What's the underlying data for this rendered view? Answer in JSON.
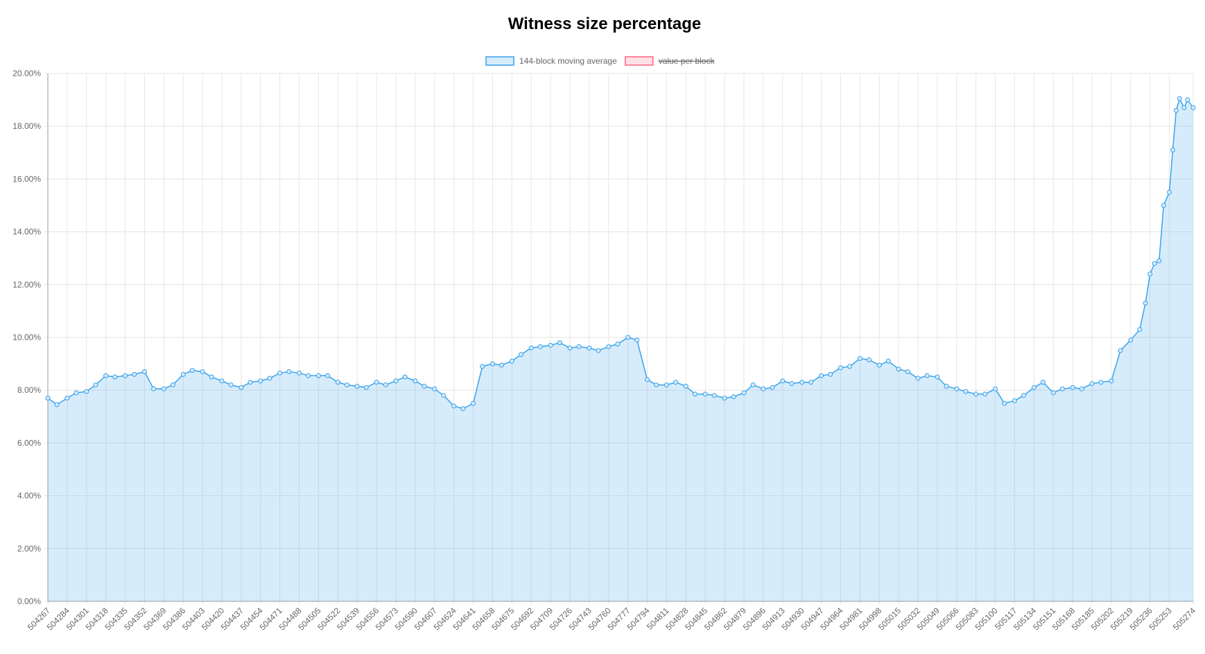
{
  "chart_data": {
    "type": "area",
    "title": "Witness size percentage",
    "x": [
      504267,
      504275,
      504284,
      504292,
      504301,
      504309,
      504318,
      504326,
      504335,
      504343,
      504352,
      504360,
      504369,
      504377,
      504386,
      504394,
      504403,
      504411,
      504420,
      504428,
      504437,
      504445,
      504454,
      504462,
      504471,
      504479,
      504488,
      504496,
      504505,
      504513,
      504522,
      504530,
      504539,
      504547,
      504556,
      504564,
      504573,
      504581,
      504590,
      504598,
      504607,
      504615,
      504624,
      504632,
      504641,
      504649,
      504658,
      504666,
      504675,
      504683,
      504692,
      504700,
      504709,
      504717,
      504726,
      504734,
      504743,
      504751,
      504760,
      504768,
      504777,
      504785,
      504794,
      504802,
      504811,
      504819,
      504828,
      504836,
      504845,
      504853,
      504862,
      504870,
      504879,
      504887,
      504896,
      504904,
      504913,
      504921,
      504930,
      504938,
      504947,
      504955,
      504964,
      504972,
      504981,
      504989,
      504998,
      505006,
      505015,
      505023,
      505032,
      505040,
      505049,
      505057,
      505066,
      505074,
      505083,
      505091,
      505100,
      505108,
      505117,
      505125,
      505134,
      505142,
      505151,
      505159,
      505168,
      505176,
      505185,
      505193,
      505202,
      505210,
      505219,
      505227,
      505232,
      505236,
      505240,
      505244,
      505248,
      505253,
      505256,
      505259,
      505262,
      505266,
      505269,
      505274
    ],
    "series": [
      {
        "name": "144-block moving average",
        "color": "#36a2eb",
        "values": [
          7.7,
          7.45,
          7.7,
          7.9,
          7.95,
          8.2,
          8.55,
          8.5,
          8.55,
          8.6,
          8.7,
          8.05,
          8.05,
          8.2,
          8.6,
          8.75,
          8.7,
          8.5,
          8.35,
          8.2,
          8.1,
          8.3,
          8.35,
          8.45,
          8.65,
          8.7,
          8.65,
          8.55,
          8.55,
          8.55,
          8.3,
          8.2,
          8.15,
          8.1,
          8.3,
          8.2,
          8.35,
          8.5,
          8.35,
          8.15,
          8.05,
          7.8,
          7.4,
          7.3,
          7.5,
          8.9,
          9.0,
          8.95,
          9.1,
          9.35,
          9.6,
          9.65,
          9.7,
          9.8,
          9.6,
          9.65,
          9.6,
          9.5,
          9.65,
          9.75,
          10.0,
          9.9,
          8.4,
          8.2,
          8.2,
          8.3,
          8.15,
          7.85,
          7.85,
          7.8,
          7.7,
          7.75,
          7.9,
          8.2,
          8.05,
          8.1,
          8.35,
          8.25,
          8.3,
          8.3,
          8.55,
          8.6,
          8.85,
          8.9,
          9.2,
          9.15,
          8.95,
          9.1,
          8.8,
          8.7,
          8.45,
          8.55,
          8.5,
          8.15,
          8.05,
          7.95,
          7.85,
          7.85,
          8.05,
          7.5,
          7.6,
          7.8,
          8.1,
          8.3,
          7.9,
          8.05,
          8.1,
          8.05,
          8.25,
          8.3,
          8.35,
          9.5,
          9.9,
          10.3,
          11.3,
          12.4,
          12.8,
          12.9,
          15.0,
          15.5,
          17.1,
          18.6,
          19.05,
          18.7,
          19.0,
          18.7
        ]
      },
      {
        "name": "value per block",
        "color": "#ff6384",
        "hidden": true
      }
    ],
    "xlim": [
      504267,
      505274
    ],
    "xticks": [
      504267,
      504284,
      504301,
      504318,
      504335,
      504352,
      504369,
      504386,
      504403,
      504420,
      504437,
      504454,
      504471,
      504488,
      504505,
      504522,
      504539,
      504556,
      504573,
      504590,
      504607,
      504624,
      504641,
      504658,
      504675,
      504692,
      504709,
      504726,
      504743,
      504760,
      504777,
      504794,
      504811,
      504828,
      504845,
      504862,
      504879,
      504896,
      504913,
      504930,
      504947,
      504964,
      504981,
      504998,
      505015,
      505032,
      505049,
      505066,
      505083,
      505100,
      505117,
      505134,
      505151,
      505168,
      505185,
      505202,
      505219,
      505236,
      505253,
      505274
    ],
    "ylim": [
      0,
      20
    ],
    "yticks": [
      {
        "value": 0,
        "label": "0.00%"
      },
      {
        "value": 2,
        "label": "2.00%"
      },
      {
        "value": 4,
        "label": "4.00%"
      },
      {
        "value": 6,
        "label": "6.00%"
      },
      {
        "value": 8,
        "label": "8.00%"
      },
      {
        "value": 10,
        "label": "10.00%"
      },
      {
        "value": 12,
        "label": "12.00%"
      },
      {
        "value": 14,
        "label": "14.00%"
      },
      {
        "value": 16,
        "label": "16.00%"
      },
      {
        "value": 18,
        "label": "18.00%"
      },
      {
        "value": 20,
        "label": "20.00%"
      }
    ],
    "grid": true,
    "legend": "top"
  }
}
